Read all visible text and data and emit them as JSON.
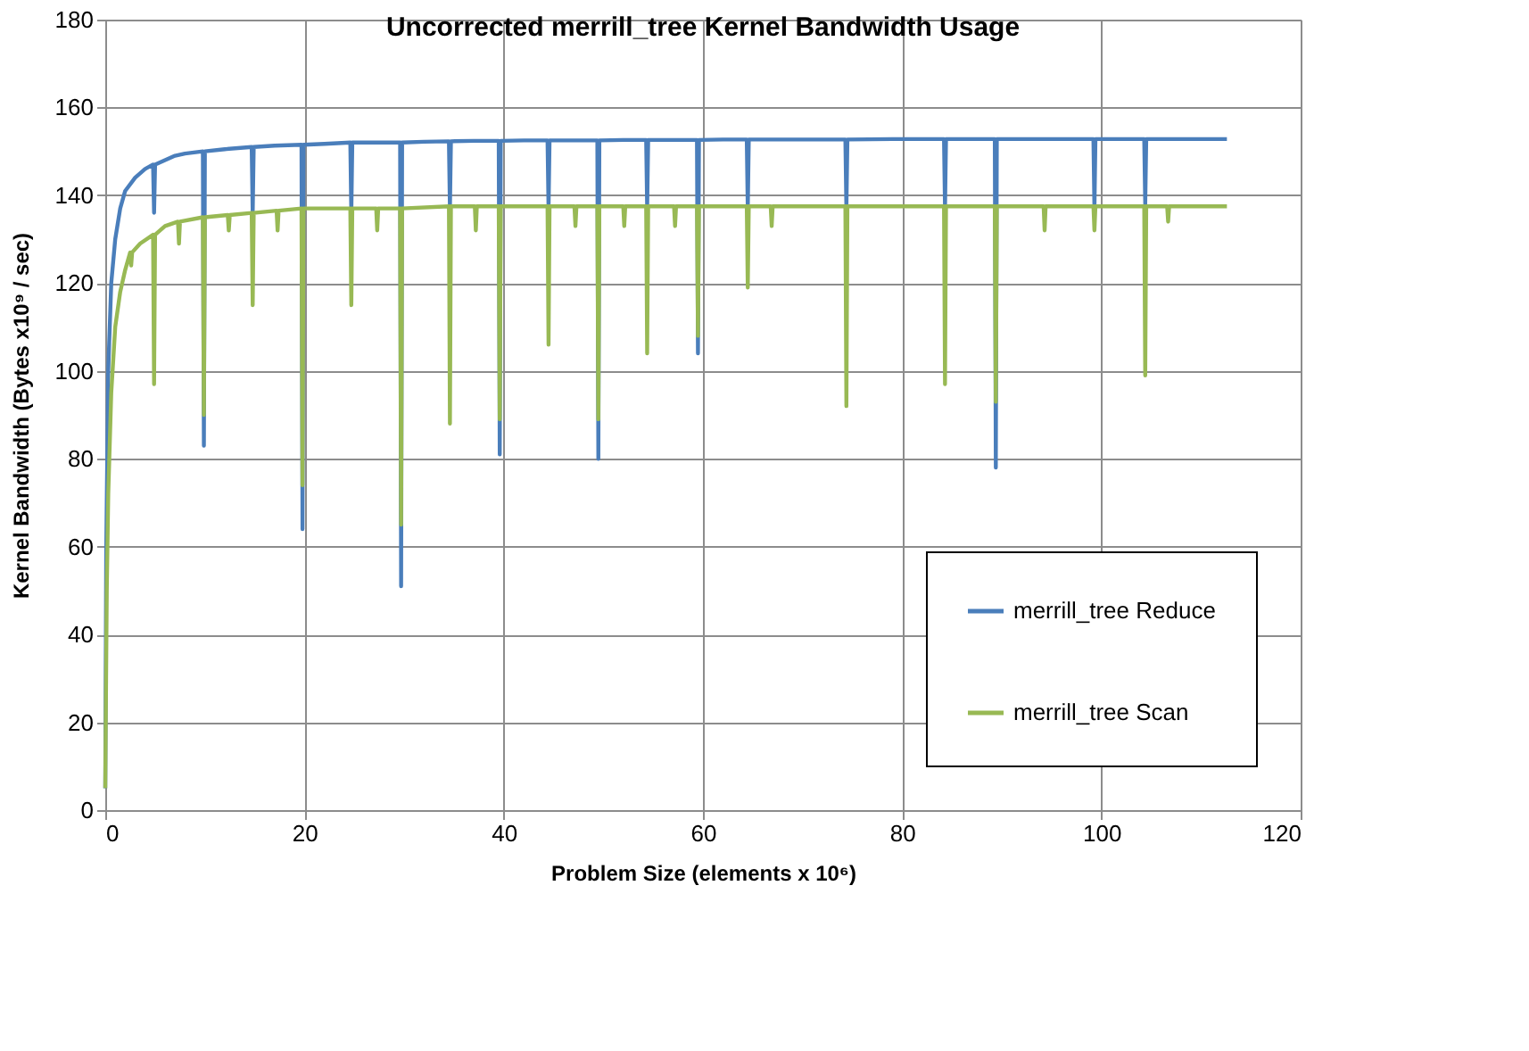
{
  "chart_data": {
    "type": "line",
    "title": "Uncorrected merrill_tree Kernel Bandwidth Usage",
    "xlabel": "Problem Size  (elements x 10⁶)",
    "ylabel": "Kernel Bandwidth (Bytes x10⁹ / sec)",
    "xlim": [
      0,
      120
    ],
    "xticks": [
      0,
      20,
      40,
      60,
      80,
      100,
      120
    ],
    "ylim": [
      0,
      180
    ],
    "yticks": [
      0,
      20,
      40,
      60,
      80,
      100,
      120,
      140,
      160,
      180
    ],
    "grid": true,
    "legend": "bottom right",
    "marker": "none",
    "line_style": "solid",
    "series": [
      {
        "name": "merrill_tree Reduce",
        "color": "#4a7ebb",
        "x": [
          0,
          0.1,
          0.3,
          0.6,
          1,
          1.5,
          2,
          3,
          4,
          4.8,
          4.9,
          5.0,
          6,
          7,
          8,
          9.8,
          9.9,
          10.0,
          12,
          14.7,
          14.8,
          14.9,
          17,
          19.7,
          19.8,
          19.9,
          22,
          24.6,
          24.7,
          24.8,
          27,
          29.6,
          29.7,
          29.8,
          32,
          34.5,
          34.6,
          34.7,
          37,
          39.5,
          39.6,
          39.7,
          42,
          44.4,
          44.5,
          44.6,
          47,
          49.4,
          49.5,
          49.6,
          52,
          54.3,
          54.4,
          54.5,
          57,
          59.4,
          59.5,
          59.6,
          62,
          64.4,
          64.5,
          64.6,
          69,
          74.3,
          74.4,
          74.5,
          79,
          84.2,
          84.3,
          84.4,
          87,
          89.3,
          89.4,
          89.5,
          94,
          99.2,
          99.3,
          99.4,
          102,
          104.3,
          104.4,
          104.5,
          108,
          112.6
        ],
        "values": [
          5,
          60,
          100,
          120,
          130,
          137,
          141,
          144,
          146,
          147,
          136,
          147,
          148,
          149,
          149.5,
          150,
          83,
          150,
          150.5,
          151,
          136,
          151,
          151.3,
          151.5,
          64,
          151.5,
          151.7,
          152,
          136,
          152,
          152,
          152,
          51,
          152,
          152.2,
          152.3,
          137,
          152.3,
          152.4,
          152.4,
          81,
          152.4,
          152.5,
          152.5,
          137,
          152.5,
          152.5,
          152.5,
          80,
          152.5,
          152.6,
          152.6,
          137,
          152.6,
          152.6,
          152.6,
          104,
          152.6,
          152.7,
          152.7,
          137,
          152.7,
          152.7,
          152.7,
          137,
          152.7,
          152.8,
          152.8,
          137,
          152.8,
          152.8,
          152.8,
          78,
          152.8,
          152.8,
          152.8,
          137,
          152.8,
          152.8,
          152.8,
          138,
          152.8,
          152.8,
          152.8
        ]
      },
      {
        "name": "merrill_tree Scan",
        "color": "#98b954",
        "x": [
          0,
          0.15,
          0.3,
          0.6,
          1,
          1.5,
          2,
          2.5,
          2.6,
          2.7,
          3.5,
          4.8,
          4.9,
          5.0,
          6,
          7.3,
          7.4,
          7.5,
          9.8,
          9.9,
          10.0,
          12.3,
          12.4,
          12.5,
          14.7,
          14.8,
          14.9,
          17.2,
          17.3,
          17.4,
          19.7,
          19.8,
          19.9,
          24.6,
          24.7,
          24.8,
          27.2,
          27.3,
          27.4,
          29.6,
          29.7,
          29.8,
          34.5,
          34.6,
          34.7,
          37.1,
          37.2,
          37.3,
          39.5,
          39.6,
          39.7,
          44.4,
          44.5,
          44.6,
          47.1,
          47.2,
          47.3,
          49.4,
          49.5,
          49.6,
          52,
          52.1,
          52.2,
          54.3,
          54.4,
          54.5,
          57.1,
          57.2,
          57.3,
          59.4,
          59.5,
          59.6,
          64.4,
          64.5,
          64.6,
          66.8,
          66.9,
          67,
          74.3,
          74.4,
          74.5,
          84.2,
          84.3,
          84.4,
          89.3,
          89.4,
          89.5,
          94.2,
          94.3,
          94.4,
          99.2,
          99.3,
          99.4,
          104.3,
          104.4,
          104.5,
          106.6,
          106.7,
          106.8,
          112.6
        ],
        "values": [
          5,
          50,
          72,
          95,
          110,
          118,
          123,
          127,
          124,
          127,
          129,
          131,
          97,
          131,
          133,
          134,
          129,
          134,
          135,
          90,
          135,
          135.5,
          132,
          135.5,
          136,
          115,
          136,
          136.5,
          132,
          136.5,
          137,
          74,
          137,
          137,
          115,
          137,
          137,
          132,
          137,
          137,
          65,
          137,
          137.5,
          88,
          137.5,
          137.5,
          132,
          137.5,
          137.5,
          89,
          137.5,
          137.5,
          106,
          137.5,
          137.5,
          133,
          137.5,
          137.5,
          89,
          137.5,
          137.5,
          133,
          137.5,
          137.5,
          104,
          137.5,
          137.5,
          133,
          137.5,
          137.5,
          108,
          137.5,
          137.5,
          119,
          137.5,
          137.5,
          133,
          137.5,
          137.5,
          92,
          137.5,
          137.5,
          97,
          137.5,
          137.5,
          93,
          137.5,
          137.5,
          132,
          137.5,
          137.5,
          132,
          137.5,
          137.5,
          99,
          137.5,
          137.5,
          134,
          137.5,
          137.5
        ]
      }
    ]
  }
}
